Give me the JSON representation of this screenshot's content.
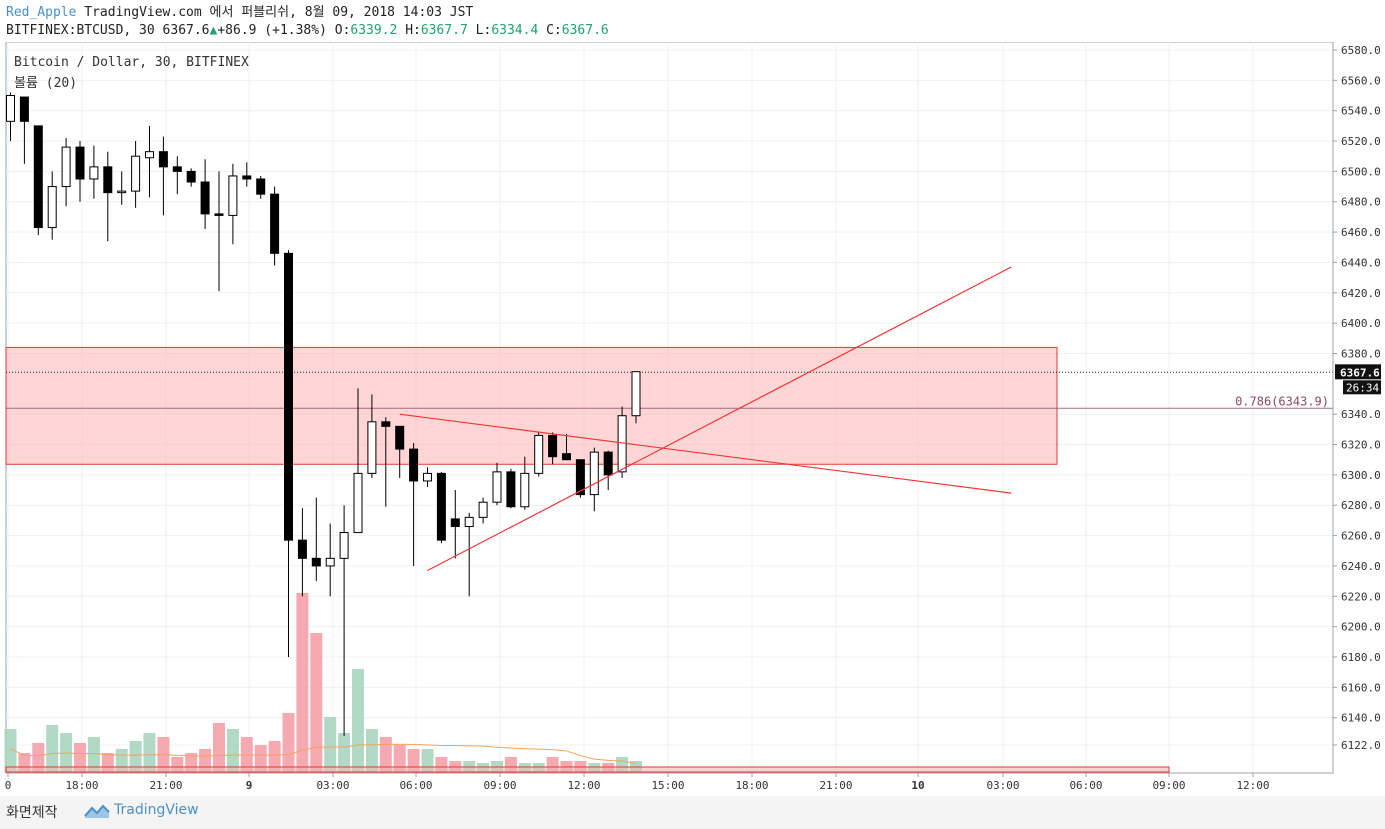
{
  "header": {
    "user": "Red_Apple",
    "published": "TradingView.com 에서 퍼블리쉬, 8월 09, 2018 14:03 JST",
    "symbol": "BITFINEX:BTCUSD, 30",
    "last": "6367.6",
    "up_arrow": "▲",
    "change": "+86.9 (+1.38%)",
    "o_label": "O:",
    "o_val": "6339.2",
    "h_label": "H:",
    "h_val": "6367.7",
    "l_label": "L:",
    "l_val": "6334.4",
    "c_label": "C:",
    "c_val": "6367.6"
  },
  "legend": {
    "series": "Bitcoin / Dollar, 30, BITFINEX",
    "volume": "볼륨 (20)"
  },
  "footer": {
    "left": "화면제작",
    "brand": "TradingView"
  },
  "colors": {
    "up_body": "#ffffff",
    "down_body": "#000000",
    "wick": "#000000",
    "zone_fill": "#ffb3b3",
    "zone_stroke": "#e53935",
    "trendline": "#f23535",
    "vol_up": "#a8d5bf",
    "vol_down": "#f4a0a8",
    "vol_ma": "#f5a35c",
    "fib": "#8b4a6b",
    "grid": "#eef1f5"
  },
  "chart_data": {
    "type": "candlestick",
    "ylim": [
      6100,
      6585
    ],
    "price_ticks": [
      6580.0,
      6560.0,
      6540.0,
      6520.0,
      6500.0,
      6480.0,
      6460.0,
      6440.0,
      6420.0,
      6400.0,
      6380.0,
      6340.0,
      6320.0,
      6300.0,
      6280.0,
      6260.0,
      6240.0,
      6220.0,
      6200.0,
      6180.0,
      6160.0,
      6140.0,
      6122.0
    ],
    "last_price_label": "6367.6",
    "countdown_label": "26:34",
    "fib_label": "0.786(6343.9)",
    "fib_level": 6343.9,
    "time_labels": [
      "0",
      "18:00",
      "21:00",
      "9",
      "03:00",
      "06:00",
      "09:00",
      "12:00",
      "15:00",
      "18:00",
      "21:00",
      "10",
      "03:00",
      "06:00",
      "09:00",
      "12:00"
    ],
    "candles": [
      {
        "o": 6533,
        "h": 6552,
        "l": 6520,
        "c": 6550
      },
      {
        "o": 6549,
        "h": 6549,
        "l": 6505,
        "c": 6533
      },
      {
        "o": 6530,
        "h": 6530,
        "l": 6458,
        "c": 6463
      },
      {
        "o": 6463,
        "h": 6500,
        "l": 6455,
        "c": 6490
      },
      {
        "o": 6490,
        "h": 6522,
        "l": 6477,
        "c": 6516
      },
      {
        "o": 6516,
        "h": 6520,
        "l": 6480,
        "c": 6495
      },
      {
        "o": 6495,
        "h": 6517,
        "l": 6482,
        "c": 6503
      },
      {
        "o": 6503,
        "h": 6513,
        "l": 6454,
        "c": 6486
      },
      {
        "o": 6486,
        "h": 6500,
        "l": 6478,
        "c": 6487
      },
      {
        "o": 6487,
        "h": 6520,
        "l": 6476,
        "c": 6510
      },
      {
        "o": 6509,
        "h": 6530,
        "l": 6483,
        "c": 6513
      },
      {
        "o": 6513,
        "h": 6523,
        "l": 6471,
        "c": 6503
      },
      {
        "o": 6503,
        "h": 6510,
        "l": 6485,
        "c": 6500
      },
      {
        "o": 6500,
        "h": 6502,
        "l": 6490,
        "c": 6493
      },
      {
        "o": 6493,
        "h": 6508,
        "l": 6462,
        "c": 6472
      },
      {
        "o": 6472,
        "h": 6500,
        "l": 6421,
        "c": 6471
      },
      {
        "o": 6471,
        "h": 6505,
        "l": 6452,
        "c": 6497
      },
      {
        "o": 6497,
        "h": 6506,
        "l": 6490,
        "c": 6495
      },
      {
        "o": 6495,
        "h": 6497,
        "l": 6482,
        "c": 6485
      },
      {
        "o": 6485,
        "h": 6490,
        "l": 6438,
        "c": 6446
      },
      {
        "o": 6446,
        "h": 6448,
        "l": 6180,
        "c": 6257
      },
      {
        "o": 6257,
        "h": 6278,
        "l": 6220,
        "c": 6245
      },
      {
        "o": 6245,
        "h": 6285,
        "l": 6230,
        "c": 6240
      },
      {
        "o": 6240,
        "h": 6268,
        "l": 6220,
        "c": 6245
      },
      {
        "o": 6245,
        "h": 6280,
        "l": 6128,
        "c": 6262
      },
      {
        "o": 6262,
        "h": 6357,
        "l": 6262,
        "c": 6301
      },
      {
        "o": 6301,
        "h": 6353,
        "l": 6298,
        "c": 6335
      },
      {
        "o": 6335,
        "h": 6338,
        "l": 6279,
        "c": 6332
      },
      {
        "o": 6332,
        "h": 6332,
        "l": 6298,
        "c": 6317
      },
      {
        "o": 6317,
        "h": 6321,
        "l": 6240,
        "c": 6296
      },
      {
        "o": 6296,
        "h": 6305,
        "l": 6292,
        "c": 6301
      },
      {
        "o": 6301,
        "h": 6302,
        "l": 6255,
        "c": 6257
      },
      {
        "o": 6271,
        "h": 6290,
        "l": 6245,
        "c": 6266
      },
      {
        "o": 6266,
        "h": 6275,
        "l": 6220,
        "c": 6272
      },
      {
        "o": 6272,
        "h": 6285,
        "l": 6268,
        "c": 6282
      },
      {
        "o": 6282,
        "h": 6308,
        "l": 6280,
        "c": 6302
      },
      {
        "o": 6302,
        "h": 6304,
        "l": 6278,
        "c": 6279
      },
      {
        "o": 6279,
        "h": 6312,
        "l": 6277,
        "c": 6301
      },
      {
        "o": 6301,
        "h": 6328,
        "l": 6299,
        "c": 6326
      },
      {
        "o": 6326,
        "h": 6328,
        "l": 6307,
        "c": 6312
      },
      {
        "o": 6314,
        "h": 6327,
        "l": 6311,
        "c": 6310
      },
      {
        "o": 6310,
        "h": 6310,
        "l": 6285,
        "c": 6287
      },
      {
        "o": 6287,
        "h": 6318,
        "l": 6276,
        "c": 6315
      },
      {
        "o": 6315,
        "h": 6316,
        "l": 6290,
        "c": 6300
      },
      {
        "o": 6302,
        "h": 6345,
        "l": 6298,
        "c": 6339
      },
      {
        "o": 6339,
        "h": 6368,
        "l": 6334,
        "c": 6368
      }
    ],
    "volumes": [
      0.22,
      0.1,
      0.15,
      0.24,
      0.2,
      0.15,
      0.18,
      0.1,
      0.12,
      0.16,
      0.2,
      0.18,
      0.08,
      0.1,
      0.12,
      0.25,
      0.22,
      0.18,
      0.14,
      0.16,
      0.3,
      0.9,
      0.7,
      0.28,
      0.2,
      0.52,
      0.22,
      0.18,
      0.14,
      0.12,
      0.12,
      0.08,
      0.06,
      0.06,
      0.05,
      0.06,
      0.08,
      0.05,
      0.05,
      0.08,
      0.06,
      0.06,
      0.05,
      0.05,
      0.08,
      0.06
    ],
    "zone": {
      "top": 6384,
      "bottom": 6307
    },
    "trendlines": [
      {
        "from": {
          "i": 28,
          "p": 6340
        },
        "to": {
          "i": 72,
          "p": 6288
        }
      },
      {
        "from": {
          "i": 30,
          "p": 6237
        },
        "to": {
          "i": 72,
          "p": 6437
        }
      }
    ]
  }
}
